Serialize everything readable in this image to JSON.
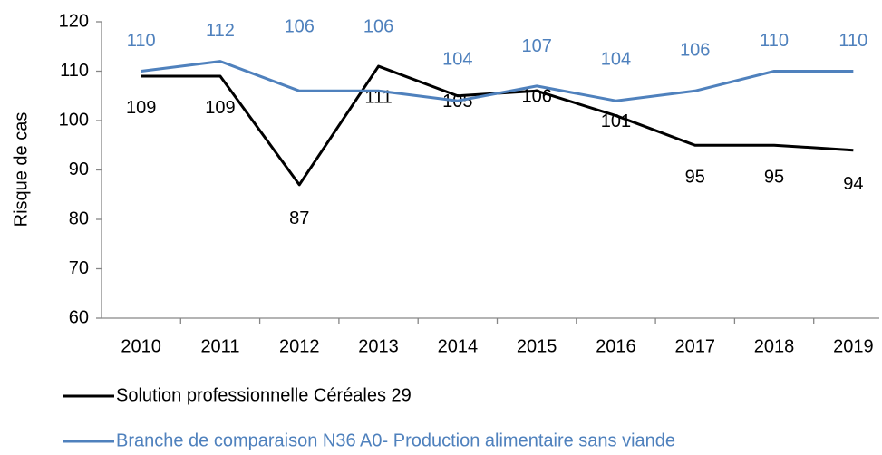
{
  "chart_data": {
    "type": "line",
    "ylabel": "Risque de cas",
    "categories": [
      "2010",
      "2011",
      "2012",
      "2013",
      "2014",
      "2015",
      "2016",
      "2017",
      "2018",
      "2019"
    ],
    "series": [
      {
        "name": "Solution professionnelle Céréales 29",
        "color": "#000000",
        "values": [
          109,
          109,
          87,
          111,
          105,
          106,
          101,
          95,
          95,
          94
        ]
      },
      {
        "name": "Branche de comparaison N36 A0- Production alimentaire sans viande",
        "color": "#4f81bd",
        "values": [
          110,
          112,
          106,
          106,
          104,
          107,
          104,
          106,
          110,
          110
        ]
      }
    ],
    "ylim": [
      60,
      120
    ],
    "yticks": [
      60,
      70,
      80,
      90,
      100,
      110,
      120
    ],
    "grid": false,
    "legend": "bottom"
  }
}
